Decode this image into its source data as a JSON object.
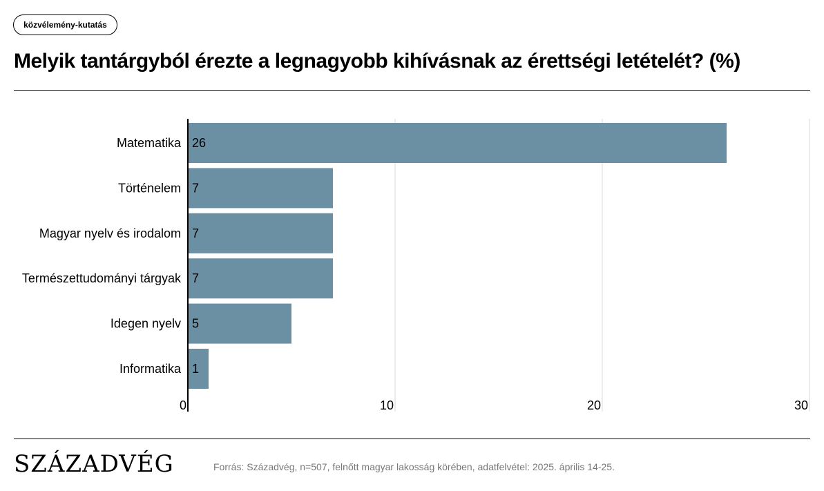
{
  "tag": "közvélemény-kutatás",
  "title": "Melyik tantárgyból érezte a legnagyobb kihívásnak az érettségi letételét? (%)",
  "footer": {
    "logo": "SZÁZADVÉG",
    "source": "Forrás: Századvég, n=507, felnőtt magyar lakosság körében, adatfelvétel: 2025. április 14-25."
  },
  "colors": {
    "bar": "#6b90a4",
    "grid": "#d9d9d9",
    "axis": "#000000"
  },
  "chart_data": {
    "type": "bar",
    "orientation": "horizontal",
    "categories": [
      "Matematika",
      "Történelem",
      "Magyar nyelv és irodalom",
      "Természettudományi tárgyak",
      "Idegen nyelv",
      "Informatika"
    ],
    "values": [
      26,
      7,
      7,
      7,
      5,
      1
    ],
    "xlim": [
      0,
      30
    ],
    "xticks": [
      0,
      10,
      20,
      30
    ],
    "grid": true,
    "data_labels": true
  }
}
